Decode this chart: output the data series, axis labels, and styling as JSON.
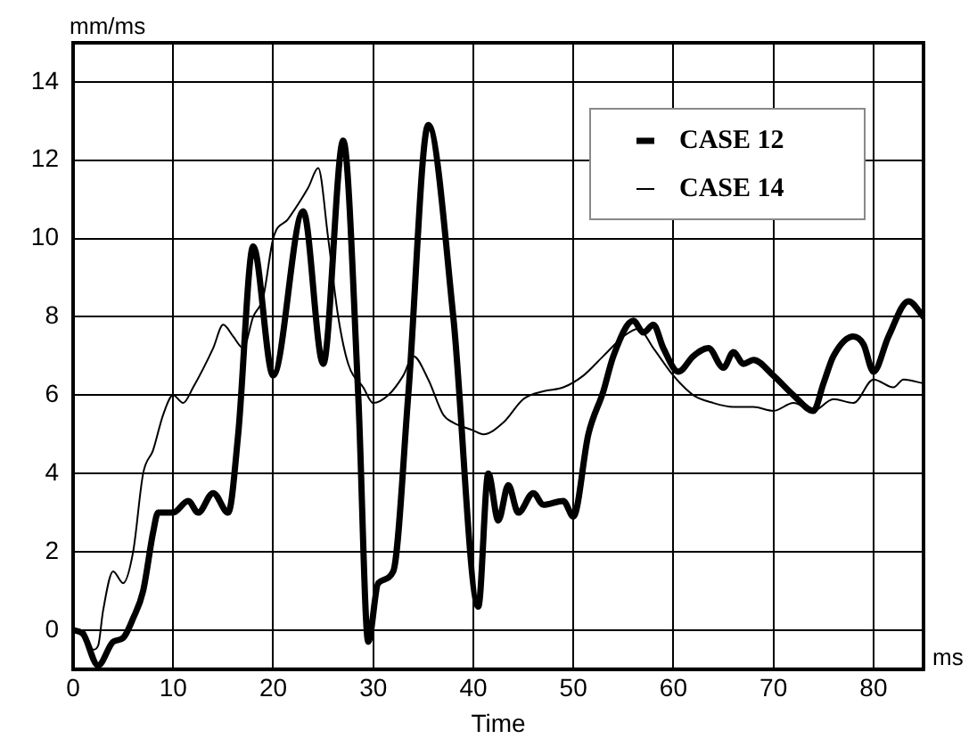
{
  "chart_data": {
    "type": "line",
    "xlabel": "Time",
    "ylabel": "mm/ms",
    "annotations": [
      "ms"
    ],
    "xlim": [
      0,
      85
    ],
    "xticks": [
      0,
      10,
      20,
      30,
      40,
      50,
      60,
      70,
      80
    ],
    "ylim": [
      -1,
      15
    ],
    "yticks": [
      0,
      2,
      4,
      6,
      8,
      10,
      12,
      14
    ],
    "grid": true,
    "legend": "top right",
    "marker": "none",
    "line_style": "solid",
    "series": [
      {
        "name": "CASE 12",
        "color": "#000000",
        "x": [
          0,
          1,
          2.5,
          4,
          5,
          6,
          7,
          8,
          8.5,
          10,
          11.5,
          12.5,
          14,
          15.5,
          16.5,
          18,
          20,
          23,
          25,
          27,
          28.5,
          29.5,
          30.5,
          32,
          33.5,
          35.5,
          38,
          40.5,
          41.5,
          42.5,
          43.5,
          44.5,
          46,
          47,
          49,
          50,
          51.5,
          53,
          54,
          56,
          57,
          58,
          59,
          60.5,
          62,
          63.5,
          65,
          66,
          67,
          68,
          70,
          72,
          74,
          75,
          76,
          78,
          79,
          80,
          81.5,
          83.5,
          85
        ],
        "values": [
          0,
          -0.1,
          -0.9,
          -0.3,
          -0.2,
          0.3,
          1,
          2.5,
          3,
          3,
          3.3,
          3,
          3.5,
          3,
          5,
          9.8,
          6.5,
          10.7,
          6.8,
          12.5,
          6,
          -0.3,
          1.2,
          1.5,
          6,
          12.9,
          8,
          0.6,
          4,
          2.8,
          3.7,
          3,
          3.5,
          3.2,
          3.3,
          2.9,
          5,
          6.1,
          7,
          7.9,
          7.6,
          7.8,
          7.2,
          6.6,
          7,
          7.2,
          6.7,
          7.1,
          6.8,
          6.9,
          6.5,
          6,
          5.6,
          6.3,
          7,
          7.5,
          7.3,
          6.6,
          7.5,
          8.4,
          8
        ]
      },
      {
        "name": "CASE 14",
        "color": "#000000",
        "x": [
          0,
          1,
          2,
          2.5,
          3,
          4,
          5,
          6,
          7,
          8,
          9,
          10,
          11,
          12,
          14,
          15,
          16,
          17,
          18,
          19,
          20,
          21.5,
          23.5,
          24.5,
          25.5,
          26.5,
          27.5,
          29,
          30,
          31.5,
          33,
          34,
          35.5,
          37,
          38,
          40,
          41,
          43,
          45,
          47,
          49,
          51,
          53,
          55,
          56.5,
          58,
          60,
          62,
          64,
          66,
          68,
          70,
          72,
          74,
          76,
          78,
          80,
          82,
          83,
          85
        ],
        "values": [
          0,
          0,
          -0.5,
          -0.4,
          0.5,
          1.5,
          1.2,
          2,
          4,
          4.6,
          5.5,
          6,
          5.8,
          6.2,
          7.2,
          7.8,
          7.5,
          7.2,
          8,
          8.5,
          10,
          10.5,
          11.3,
          11.8,
          10,
          8,
          6.8,
          6.2,
          5.8,
          6,
          6.5,
          7,
          6.4,
          5.5,
          5.3,
          5.1,
          5,
          5.3,
          5.9,
          6.1,
          6.2,
          6.5,
          7,
          7.5,
          7.7,
          7.2,
          6.5,
          6,
          5.8,
          5.7,
          5.7,
          5.6,
          5.8,
          5.6,
          5.9,
          5.8,
          6.4,
          6.2,
          6.4,
          6.3
        ]
      }
    ]
  }
}
